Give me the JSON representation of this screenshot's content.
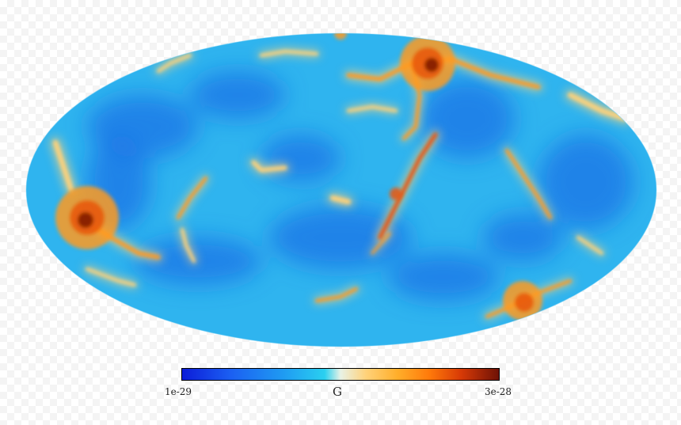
{
  "chart_data": {
    "type": "heatmap",
    "projection": "mollweide",
    "colorbar": {
      "min_label": "1e-29",
      "max_label": "3e-28",
      "unit_label": "G",
      "colormap": [
        "#0c1cd8",
        "#1b5ef2",
        "#1f9bf2",
        "#2ad0f0",
        "#e8f2e6",
        "#ffd27a",
        "#ffae2a",
        "#ff7a0a",
        "#d83a06",
        "#6e1206"
      ]
    },
    "map": {
      "background_color": "#2fb4ef",
      "structure_colors": [
        "#ffd27a",
        "#ff9a20",
        "#e8560a",
        "#7a1606"
      ],
      "void_color": "#1d74e6"
    }
  }
}
